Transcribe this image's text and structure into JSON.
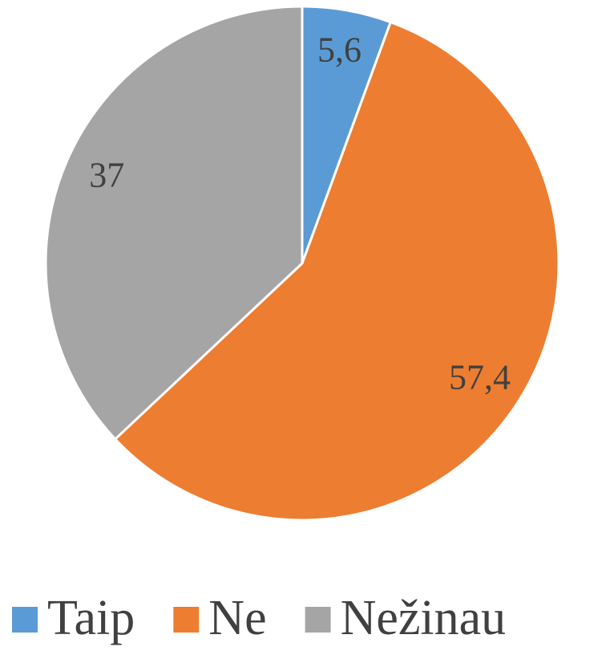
{
  "chart_data": {
    "type": "pie",
    "categories": [
      "Taip",
      "Ne",
      "Nežinau"
    ],
    "values": [
      5.6,
      57.4,
      37
    ],
    "value_labels": [
      "5,6",
      "57,4",
      "37"
    ],
    "colors": [
      "#5b9bd5",
      "#ed7d31",
      "#a5a5a5"
    ],
    "legend": "bottom"
  }
}
